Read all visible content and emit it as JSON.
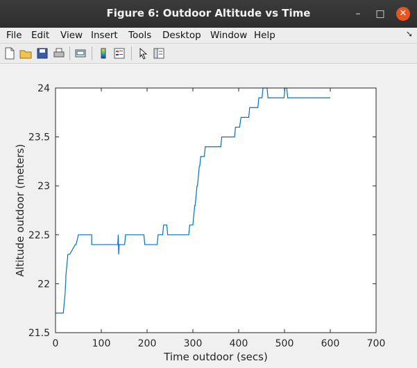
{
  "window": {
    "title": "Figure 6: Outdoor Altitude vs Time"
  },
  "menu": {
    "items": [
      {
        "label": "File"
      },
      {
        "label": "Edit"
      },
      {
        "label": "View"
      },
      {
        "label": "Insert"
      },
      {
        "label": "Tools"
      },
      {
        "label": "Desktop"
      },
      {
        "label": "Window"
      },
      {
        "label": "Help"
      }
    ]
  },
  "toolbar": {
    "buttons": [
      "new-figure-icon",
      "open-folder-icon",
      "save-icon",
      "print-icon",
      "print-preview-icon",
      "colorbar-icon",
      "legend-icon",
      "pointer-icon",
      "property-editor-icon"
    ]
  },
  "chart_data": {
    "type": "line",
    "xlabel": "Time outdoor (secs)",
    "ylabel": "Altitude outdoor (meters)",
    "xlim": [
      0,
      700
    ],
    "ylim": [
      21.5,
      24
    ],
    "xticks": [
      0,
      100,
      200,
      300,
      400,
      500,
      600,
      700
    ],
    "yticks": [
      21.5,
      22,
      22.5,
      23,
      23.5,
      24
    ],
    "ytick_labels": [
      "21.5",
      "22",
      "22.5",
      "23",
      "23.5",
      "24"
    ],
    "line_color": "#0072bd",
    "series": [
      {
        "x": [
          0,
          17,
          19,
          19,
          21,
          21,
          23,
          25,
          25,
          27,
          27,
          29,
          31,
          43,
          45,
          50,
          52,
          77,
          79,
          79,
          81,
          136,
          137,
          138,
          139,
          140,
          141,
          141,
          150,
          151,
          151,
          153,
          191,
          193,
          193,
          195,
          220,
          222,
          222,
          224,
          232,
          234,
          234,
          236,
          241,
          243,
          243,
          245,
          252,
          266,
          289,
          291,
          291,
          293,
          300,
          302,
          302,
          304,
          305,
          307,
          307,
          309,
          310,
          312,
          312,
          314,
          315,
          317,
          320,
          322,
          322,
          324,
          325,
          327,
          359,
          361,
          361,
          363,
          389,
          391,
          391,
          393,
          400,
          402,
          402,
          405,
          420,
          422,
          422,
          424,
          440,
          442,
          442,
          444,
          449,
          451,
          451,
          453,
          460,
          462,
          462,
          464,
          474,
          476,
          481,
          483,
          483,
          485,
          499,
          501,
          501,
          503,
          505,
          507,
          507,
          509,
          600
        ],
        "y": [
          21.7,
          21.7,
          21.8,
          21.8,
          21.9,
          21.9,
          22.1,
          22.2,
          22.2,
          22.3,
          22.3,
          22.3,
          22.3,
          22.4,
          22.4,
          22.5,
          22.5,
          22.5,
          22.5,
          22.4,
          22.4,
          22.4,
          22.5,
          22.3,
          22.4,
          22.4,
          22.4,
          22.4,
          22.4,
          22.4,
          22.4,
          22.5,
          22.5,
          22.5,
          22.5,
          22.4,
          22.4,
          22.4,
          22.4,
          22.5,
          22.5,
          22.5,
          22.5,
          22.6,
          22.6,
          22.6,
          22.6,
          22.5,
          22.5,
          22.5,
          22.5,
          22.5,
          22.5,
          22.6,
          22.6,
          22.7,
          22.7,
          22.8,
          22.8,
          22.9,
          22.9,
          23.0,
          23.0,
          23.1,
          23.1,
          23.2,
          23.2,
          23.3,
          23.3,
          23.3,
          23.3,
          23.3,
          23.3,
          23.4,
          23.4,
          23.4,
          23.4,
          23.5,
          23.5,
          23.5,
          23.5,
          23.6,
          23.6,
          23.6,
          23.6,
          23.7,
          23.7,
          23.7,
          23.7,
          23.8,
          23.8,
          23.8,
          23.8,
          23.9,
          23.9,
          23.9,
          23.9,
          24.0,
          24.0,
          24.0,
          24.0,
          23.9,
          23.9,
          23.9,
          23.9,
          23.9,
          23.9,
          23.9,
          23.9,
          24.0,
          24.0,
          24.0,
          24.0,
          23.9,
          23.9,
          23.9,
          23.9
        ]
      }
    ],
    "grid": false
  }
}
